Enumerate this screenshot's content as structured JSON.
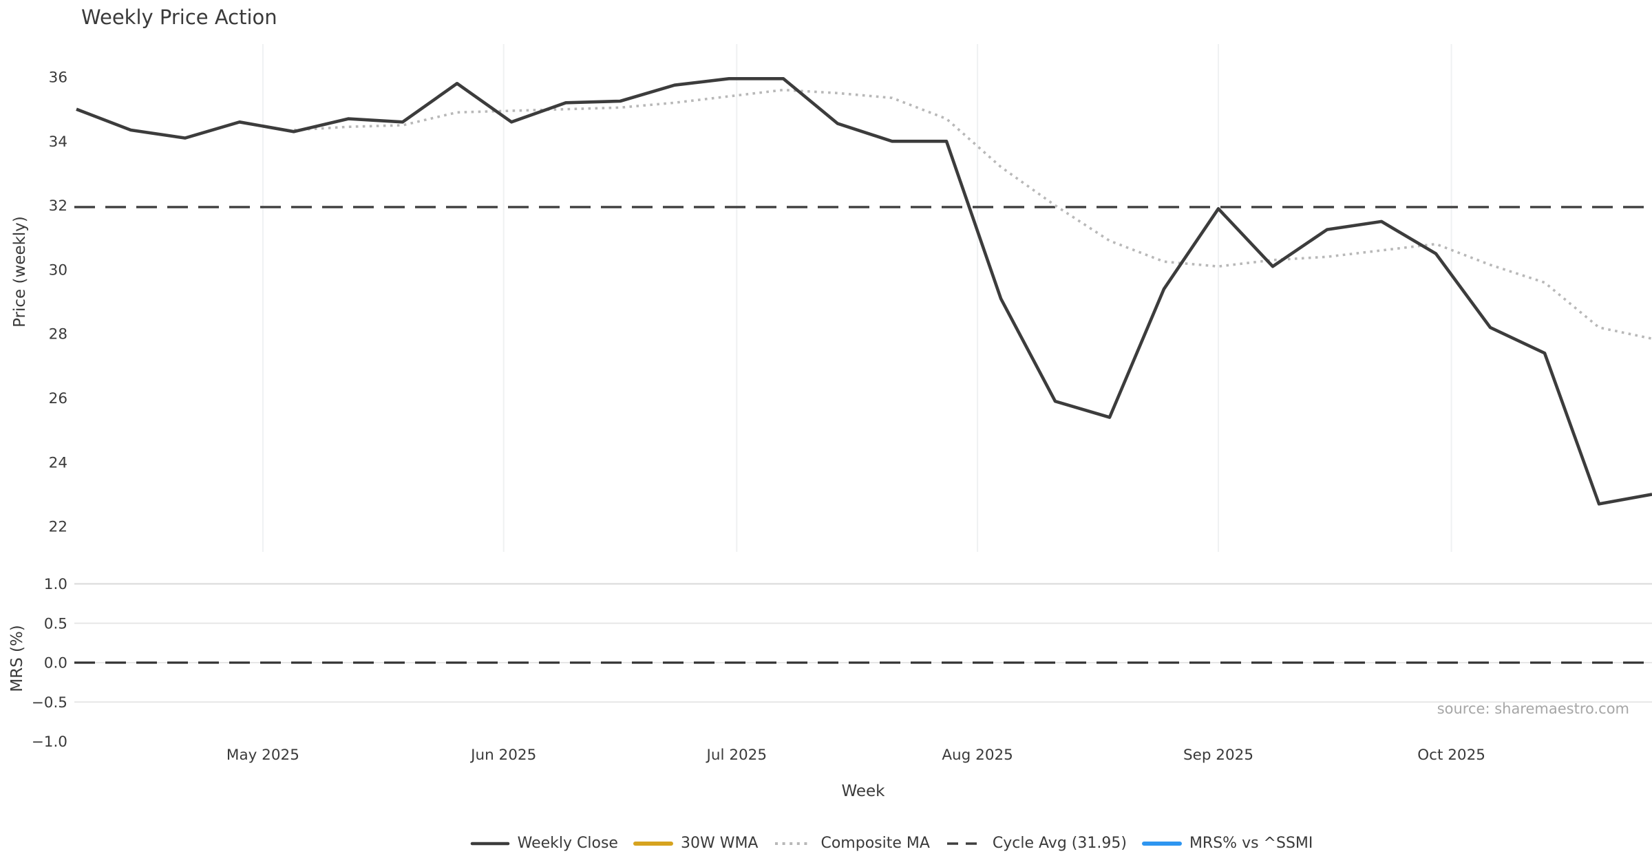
{
  "title": "Weekly Price Action",
  "source_note": "source: sharemaestro.com",
  "colors": {
    "weekly_close": "#3c3c3c",
    "wma_30w": "#d6a31f",
    "composite_ma": "#b8b8b8",
    "cycle_avg": "#3f3f3f",
    "mrs_line": "#2e95f0",
    "month_gridline": "#eff1f2",
    "mrs_gridline": "#e7e7e7",
    "mrs_gridline_top": "#d9d9d9",
    "text": "#3a3a3a",
    "source_text": "#a6a6a6"
  },
  "legend": {
    "items": [
      {
        "label": "Weekly Close",
        "color": "#3c3c3c",
        "pattern": "solid",
        "thickness": 4.6
      },
      {
        "label": "30W WMA",
        "color": "#d6a31f",
        "pattern": "solid",
        "thickness": 6
      },
      {
        "label": "Composite MA",
        "color": "#b8b8b8",
        "pattern": "dotted",
        "thickness": 4
      },
      {
        "label": "Cycle Avg (31.95)",
        "color": "#3f3f3f",
        "pattern": "dashed",
        "thickness": 3.4
      },
      {
        "label": "MRS% vs ^SSMI",
        "color": "#2e95f0",
        "pattern": "solid",
        "thickness": 6
      }
    ]
  },
  "chart_data": [
    {
      "type": "line",
      "panel": "price",
      "title": "Weekly Price Action",
      "xlabel": "Week",
      "ylabel": "Price (weekly)",
      "ylim": [
        21.2,
        37.0
      ],
      "yticks": [
        36,
        34,
        32,
        30,
        28,
        26,
        24,
        22
      ],
      "grid": "vertical-month-lines-only",
      "x_unit": "weeks (one point per week, Apr 2025 through late Oct 2025)",
      "month_ticks": {
        "labels": [
          "May 2025",
          "Jun 2025",
          "Jul 2025",
          "Aug 2025",
          "Sep 2025",
          "Oct 2025"
        ],
        "week_positions": [
          3.429,
          7.857,
          12.143,
          16.571,
          21.0,
          25.286
        ]
      },
      "series": [
        {
          "name": "Weekly Close",
          "style": "solid",
          "color": "#3c3c3c",
          "start_week_index": 0,
          "values": [
            35.0,
            34.35,
            34.1,
            34.6,
            34.3,
            34.7,
            34.6,
            35.8,
            34.6,
            35.2,
            35.25,
            35.75,
            35.95,
            35.95,
            34.55,
            34.0,
            34.0,
            29.1,
            25.9,
            25.4,
            29.4,
            31.9,
            30.1,
            31.25,
            31.5,
            30.5,
            28.2,
            27.4,
            22.7,
            23.0
          ]
        },
        {
          "name": "Composite MA",
          "style": "dotted",
          "color": "#b8b8b8",
          "start_week_index": 4,
          "values": [
            34.35,
            34.45,
            34.5,
            34.9,
            34.95,
            35.0,
            35.05,
            35.2,
            35.4,
            35.6,
            35.5,
            35.35,
            34.7,
            33.2,
            32.0,
            30.9,
            30.25,
            30.1,
            30.3,
            30.4,
            30.6,
            30.8,
            30.15,
            29.6,
            28.2,
            27.85
          ]
        },
        {
          "name": "30W WMA",
          "style": "solid",
          "color": "#d6a31f",
          "start_week_index": 0,
          "values": [],
          "note": "legend entry only; no visible line in plot"
        },
        {
          "name": "Cycle Avg",
          "style": "dashed",
          "color": "#3f3f3f",
          "constant": 31.95
        }
      ]
    },
    {
      "type": "line",
      "panel": "mrs",
      "ylabel": "MRS (%)",
      "ylim": [
        -1.0,
        1.0
      ],
      "grid": "horizontal-lines",
      "yticks": [
        {
          "value": 1.0,
          "label": "1.0"
        },
        {
          "value": 0.5,
          "label": "0.5"
        },
        {
          "value": 0.0,
          "label": "0.0"
        },
        {
          "value": -0.5,
          "label": "−0.5"
        },
        {
          "value": -1.0,
          "label": "−1.0"
        }
      ],
      "series": [
        {
          "name": "MRS% vs ^SSMI",
          "style": "solid",
          "color": "#2e95f0",
          "values": [],
          "note": "legend entry only; no visible line in plot"
        },
        {
          "name": "Zero line",
          "style": "dashed",
          "color": "#333333",
          "constant": 0.0
        }
      ]
    }
  ]
}
